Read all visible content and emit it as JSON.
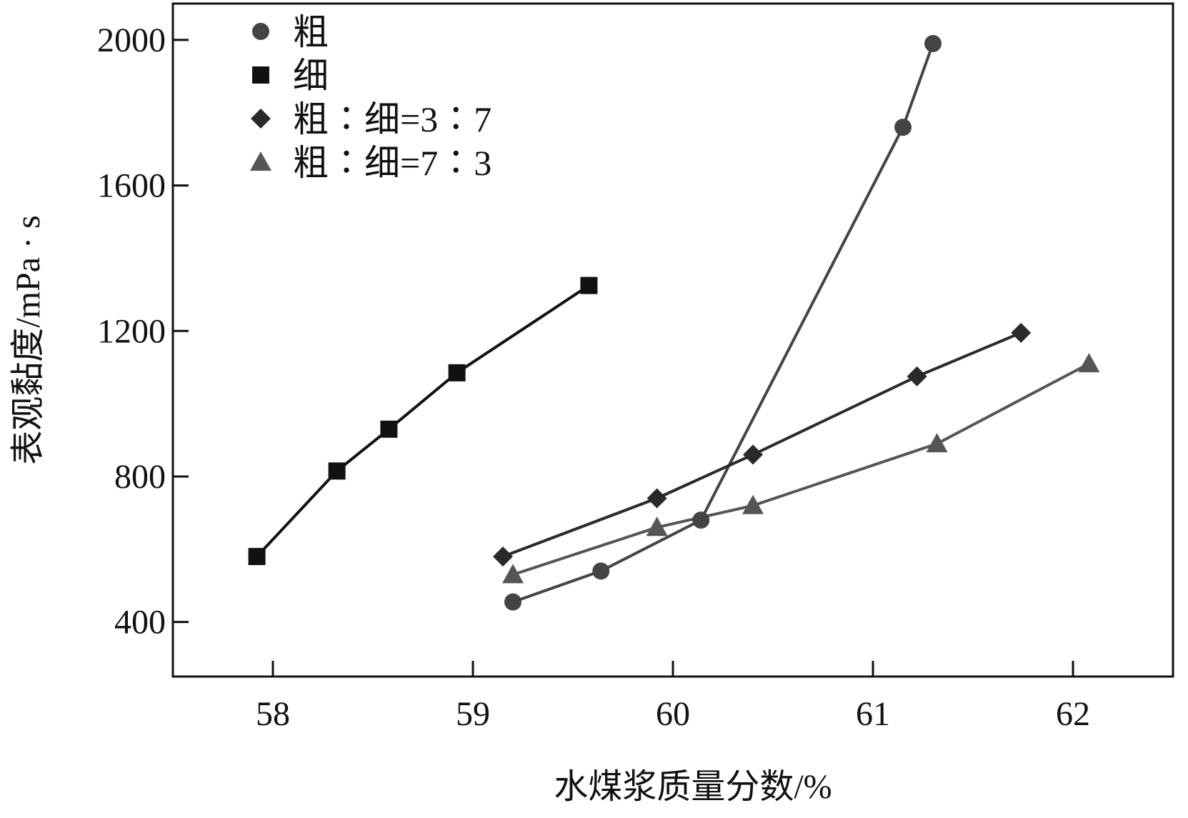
{
  "chart_data": {
    "type": "line",
    "xlabel": "水煤浆质量分数/%",
    "ylabel": "表观黏度/mPa · s",
    "xlim": [
      57.5,
      62.5
    ],
    "ylim": [
      250,
      2100
    ],
    "xticks": [
      58,
      59,
      60,
      61,
      62
    ],
    "yticks": [
      400,
      800,
      1200,
      1600,
      2000
    ],
    "grid": false,
    "legend_position": "top-left",
    "series": [
      {
        "name": "粗",
        "marker": "circle",
        "color": "#444444",
        "x": [
          59.2,
          59.64,
          60.14,
          61.15,
          61.3
        ],
        "y": [
          455,
          540,
          680,
          1760,
          1990
        ]
      },
      {
        "name": "细",
        "marker": "square",
        "color": "#111111",
        "x": [
          57.92,
          58.32,
          58.58,
          58.92,
          59.58
        ],
        "y": [
          580,
          815,
          930,
          1085,
          1325
        ]
      },
      {
        "name": "粗∶细=3∶7",
        "marker": "diamond",
        "color": "#2a2a2a",
        "x": [
          59.15,
          59.92,
          60.4,
          61.22,
          61.74
        ],
        "y": [
          580,
          740,
          860,
          1075,
          1195
        ]
      },
      {
        "name": "粗∶细=7∶3",
        "marker": "triangle",
        "color": "#555555",
        "x": [
          59.2,
          59.92,
          60.4,
          61.32,
          62.08
        ],
        "y": [
          530,
          660,
          720,
          890,
          1110
        ]
      }
    ]
  }
}
